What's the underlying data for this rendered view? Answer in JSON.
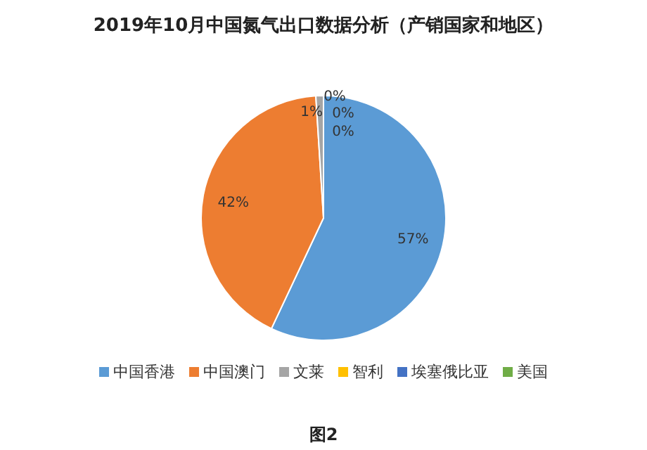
{
  "chart_data": {
    "type": "pie",
    "title": "2019年10月中国氮气出口数据分析（产销国家和地区）",
    "categories": [
      "中国香港",
      "中国澳门",
      "文莱",
      "智利",
      "埃塞俄比亚",
      "美国"
    ],
    "values": [
      57,
      42,
      1,
      0,
      0,
      0
    ],
    "colors": [
      "#5b9bd5",
      "#ed7d31",
      "#a5a5a5",
      "#ffc000",
      "#4472c4",
      "#70ad47"
    ],
    "value_labels": [
      "57%",
      "42%",
      "1%",
      "0%",
      "0%",
      "0%"
    ],
    "legend": "bottom",
    "annotations": [
      "图2"
    ]
  }
}
